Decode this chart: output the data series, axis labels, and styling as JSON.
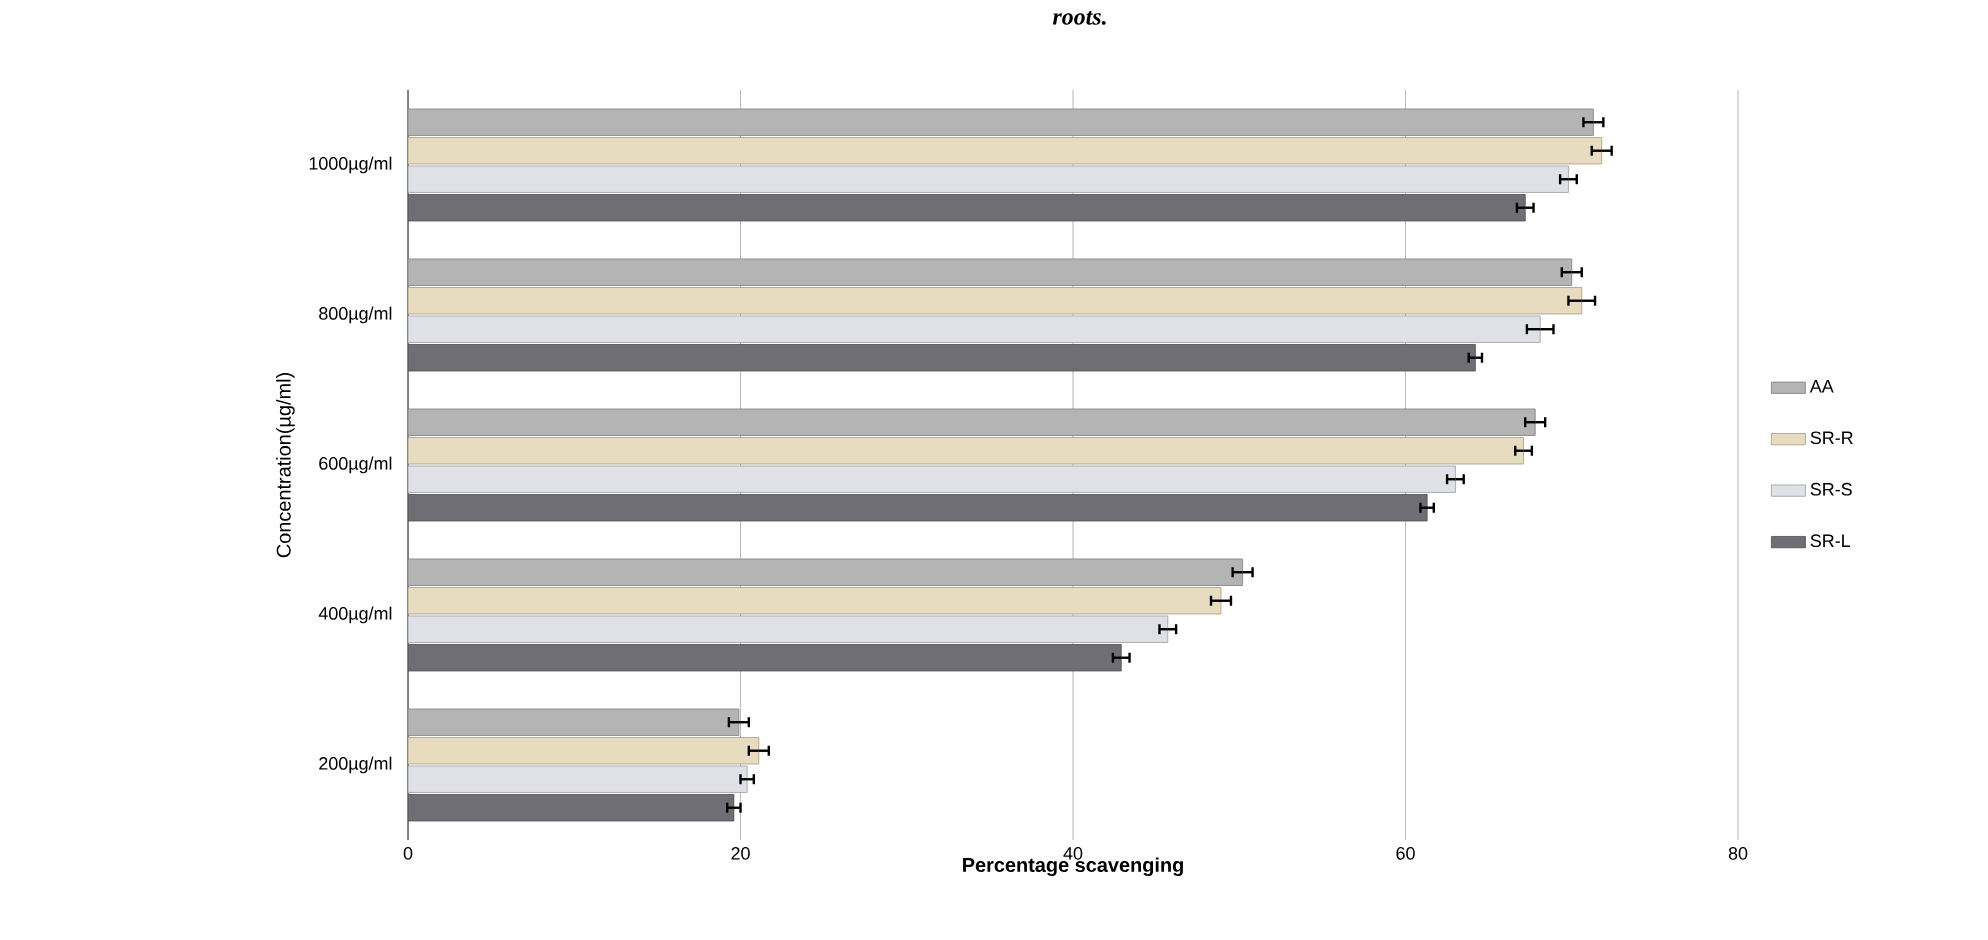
{
  "chart_data": {
    "type": "bar",
    "orientation": "horizontal",
    "title": "roots.",
    "xlabel": "Percentage scavenging",
    "ylabel": "Concentration(µg/ml)",
    "categories": [
      "1000µg/ml",
      "800µg/ml",
      "600µg/ml",
      "400µg/ml",
      "200µg/ml"
    ],
    "series": [
      {
        "name": "AA",
        "color": "#b4b4b4",
        "values": [
          71.3,
          70.0,
          67.8,
          50.2,
          19.9
        ],
        "errors": [
          0.6,
          0.6,
          0.6,
          0.6,
          0.6
        ]
      },
      {
        "name": "SR-R",
        "color": "#e8dcc0",
        "values": [
          71.8,
          70.6,
          67.1,
          48.9,
          21.1
        ],
        "errors": [
          0.6,
          0.8,
          0.5,
          0.6,
          0.6
        ]
      },
      {
        "name": "SR-S",
        "color": "#dfe1e6",
        "values": [
          69.8,
          68.1,
          63.0,
          45.7,
          20.4
        ],
        "errors": [
          0.5,
          0.8,
          0.5,
          0.5,
          0.4
        ]
      },
      {
        "name": "SR-L",
        "color": "#6e6e74",
        "values": [
          67.2,
          64.2,
          61.3,
          42.9,
          19.6
        ],
        "errors": [
          0.5,
          0.4,
          0.4,
          0.5,
          0.4
        ]
      }
    ],
    "xlim": [
      0,
      80
    ],
    "xticks": [
      0,
      20,
      40,
      60,
      80
    ],
    "grid": "x",
    "legend": "right"
  }
}
